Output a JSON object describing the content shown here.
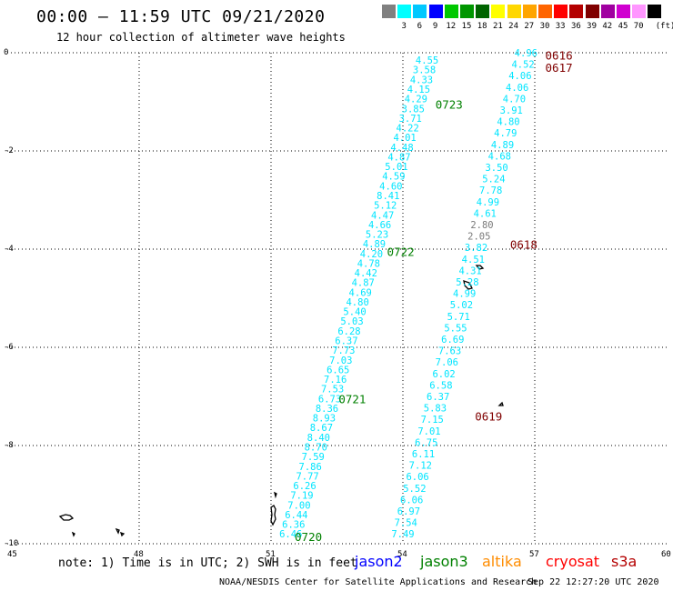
{
  "title": "00:00 – 11:59 UTC 09/21/2020",
  "subtitle": "12 hour collection of altimeter wave heights",
  "legend": {
    "unit": "(ft)",
    "bins": [
      {
        "label": "",
        "color": "#808080"
      },
      {
        "label": "3",
        "color": "#00ffff"
      },
      {
        "label": "6",
        "color": "#00c8ff"
      },
      {
        "label": "9",
        "color": "#0000ff"
      },
      {
        "label": "12",
        "color": "#00c800"
      },
      {
        "label": "15",
        "color": "#009600"
      },
      {
        "label": "18",
        "color": "#006400"
      },
      {
        "label": "21",
        "color": "#ffff00"
      },
      {
        "label": "24",
        "color": "#ffd700"
      },
      {
        "label": "27",
        "color": "#ffa500"
      },
      {
        "label": "30",
        "color": "#ff6400"
      },
      {
        "label": "33",
        "color": "#ff0000"
      },
      {
        "label": "36",
        "color": "#b40000"
      },
      {
        "label": "39",
        "color": "#800000"
      },
      {
        "label": "42",
        "color": "#a000a0"
      },
      {
        "label": "45",
        "color": "#d000d0"
      },
      {
        "label": "70",
        "color": "#ff96ff"
      },
      {
        "label": "",
        "color": "#000000"
      }
    ]
  },
  "axes": {
    "x_ticks": [
      "45",
      "48",
      "51",
      "54",
      "57",
      "60"
    ],
    "y_ticks": [
      "0",
      "-2",
      "-4",
      "-6",
      "-8",
      "-10"
    ]
  },
  "tracks": [
    {
      "id": "track-west",
      "color": "#00e5ff",
      "top_lon": 54.55,
      "top_lat": -0.15,
      "bottom_lon": 51.45,
      "bottom_lat": -9.8,
      "values": [
        "4.55",
        "3.58",
        "4.33",
        "4.15",
        "4.29",
        "3.85",
        "3.71",
        "4.22",
        "4.01",
        "4.48",
        "4.87",
        "5.01",
        "4.59",
        "4.60",
        "8.41",
        "5.12",
        "4.47",
        "4.66",
        "5.23",
        "4.89",
        "4.20",
        "4.78",
        "4.42",
        "4.87",
        "4.69",
        "4.80",
        "5.40",
        "5.03",
        "6.28",
        "6.37",
        "7.73",
        "7.03",
        "6.65",
        "7.16",
        "7.53",
        "6.73",
        "8.36",
        "8.93",
        "8.67",
        "8.40",
        "8.70",
        "7.59",
        "7.86",
        "7.77",
        "6.26",
        "7.19",
        "7.00",
        "6.44",
        "6.36",
        "6.46"
      ]
    },
    {
      "id": "track-east",
      "color": "#00e5ff",
      "top_lon": 56.8,
      "top_lat": 0.0,
      "bottom_lon": 54.0,
      "bottom_lat": -9.8,
      "values": [
        "4.96",
        "4.52",
        "4.06",
        "4.06",
        "4.70",
        "3.91",
        "4.80",
        "4.79",
        "4.89",
        "4.68",
        "3.50",
        "5.24",
        "7.78",
        "4.99",
        "4.61",
        "2.80",
        "2.05",
        "3.82",
        "4.51",
        "4.31",
        "5.28",
        "4.99",
        "5.02",
        "5.71",
        "5.55",
        "6.69",
        "7.63",
        "7.06",
        "6.02",
        "6.58",
        "6.37",
        "5.83",
        "7.15",
        "7.01",
        "6.75",
        "6.11",
        "7.12",
        "6.06",
        "5.52",
        "6.06",
        "6.97",
        "7.54",
        "7.49"
      ],
      "gray_values": [
        "2.80",
        "2.05"
      ]
    }
  ],
  "time_labels": [
    {
      "text": "0616",
      "lon": 57.55,
      "lat": -0.05,
      "color": "#800000"
    },
    {
      "text": "0617",
      "lon": 57.55,
      "lat": -0.3,
      "color": "#800000"
    },
    {
      "text": "0618",
      "lon": 56.75,
      "lat": -3.9,
      "color": "#800000"
    },
    {
      "text": "0619",
      "lon": 55.95,
      "lat": -7.4,
      "color": "#800000"
    },
    {
      "text": "0723",
      "lon": 55.05,
      "lat": -1.05,
      "color": "#008000"
    },
    {
      "text": "0722",
      "lon": 53.95,
      "lat": -4.05,
      "color": "#008000"
    },
    {
      "text": "0721",
      "lon": 52.85,
      "lat": -7.05,
      "color": "#008000"
    },
    {
      "text": "0720",
      "lon": 51.85,
      "lat": -9.85,
      "color": "#008000"
    }
  ],
  "note": "note:  1) Time is in UTC;  2) SWH is in feet",
  "satellites": [
    {
      "name": "jason2",
      "color": "#0000ff"
    },
    {
      "name": "jason3",
      "color": "#008000"
    },
    {
      "name": "altika",
      "color": "#ff8c00"
    },
    {
      "name": "cryosat",
      "color": "#ff0000"
    },
    {
      "name": "s3a",
      "color": "#b40000"
    }
  ],
  "credit": "NOAA/NESDIS Center for Satellite Applications and Research",
  "timestamp": "Sep 22 12:27:20 UTC 2020"
}
